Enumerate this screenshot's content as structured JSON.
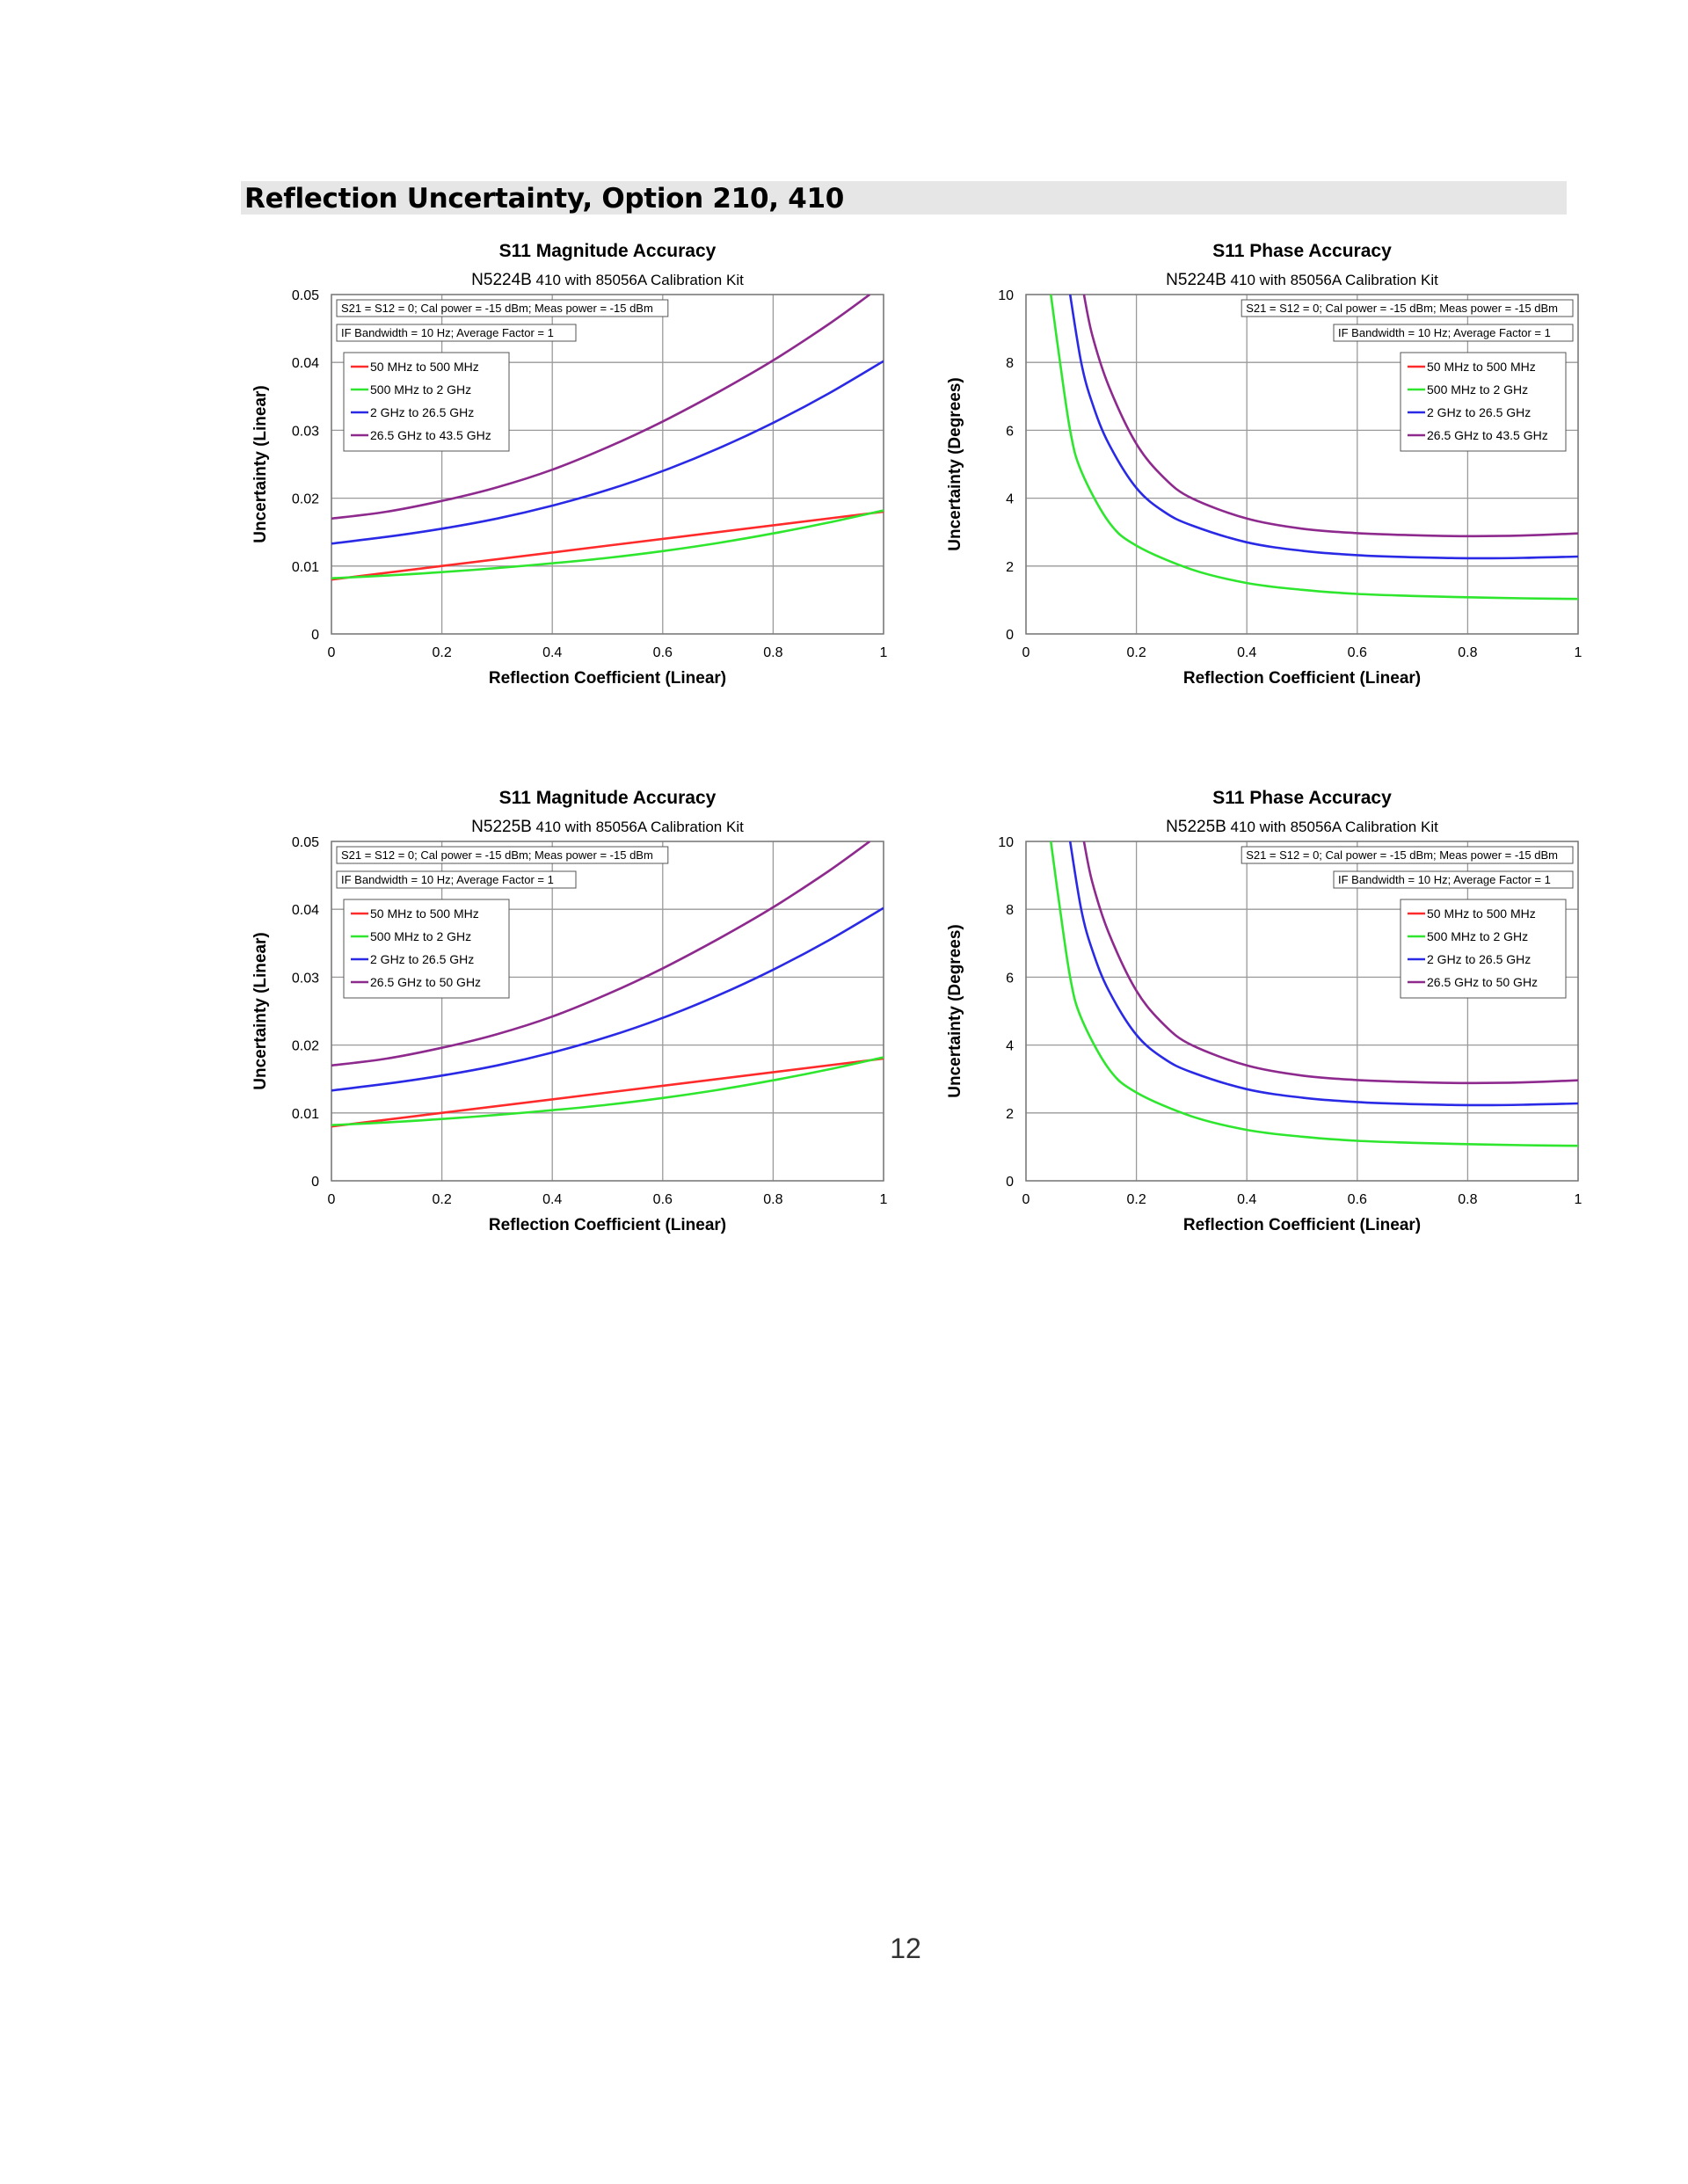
{
  "section": {
    "title": "Reflection Uncertainty, Option 210, 410"
  },
  "page_number": "12",
  "chart_data": [
    {
      "type": "line",
      "title": "S11 Magnitude Accuracy",
      "subtitle_model": "N5224B",
      "subtitle_rest": "410 with 85056A Calibration Kit",
      "xlabel": "Reflection Coefficient (Linear)",
      "ylabel": "Uncertainty (Linear)",
      "xlim": [
        0,
        1
      ],
      "ylim": [
        0,
        0.05
      ],
      "x_ticks": [
        "0",
        "0.2",
        "0.4",
        "0.6",
        "0.8",
        "1"
      ],
      "y_ticks": [
        "0",
        "0.01",
        "0.02",
        "0.03",
        "0.04",
        "0.05"
      ],
      "grid": true,
      "conditions": [
        "S21 = S12 = 0; Cal power = -15 dBm; Meas power = -15 dBm",
        "IF Bandwidth = 10 Hz; Average Factor = 1"
      ],
      "legend_position": "top-left",
      "series": [
        {
          "name": "50 MHz to 500 MHz",
          "color": "#ff2a2a",
          "x": [
            0,
            1
          ],
          "y": [
            0.008,
            0.018
          ]
        },
        {
          "name": "500 MHz to 2 GHz",
          "color": "#2ee62e",
          "x": [
            0,
            0.1,
            0.2,
            0.3,
            0.4,
            0.5,
            0.6,
            0.7,
            0.8,
            0.9,
            1.0
          ],
          "y": [
            0.0082,
            0.0086,
            0.0091,
            0.0097,
            0.0104,
            0.0112,
            0.0122,
            0.0134,
            0.0148,
            0.0164,
            0.0182
          ]
        },
        {
          "name": "2 GHz to 26.5 GHz",
          "color": "#2a2ae6",
          "x": [
            0,
            0.1,
            0.2,
            0.3,
            0.4,
            0.5,
            0.6,
            0.7,
            0.8,
            0.9,
            1.0
          ],
          "y": [
            0.0133,
            0.0143,
            0.0155,
            0.017,
            0.0189,
            0.0212,
            0.024,
            0.0273,
            0.0311,
            0.0354,
            0.0402
          ]
        },
        {
          "name": "26.5 GHz to 43.5 GHz",
          "color": "#8e2a8e",
          "x": [
            0,
            0.1,
            0.2,
            0.3,
            0.4,
            0.5,
            0.6,
            0.7,
            0.8,
            0.9,
            0.975
          ],
          "y": [
            0.017,
            0.018,
            0.0196,
            0.0216,
            0.0242,
            0.0275,
            0.0313,
            0.0356,
            0.0403,
            0.0456,
            0.05
          ]
        }
      ]
    },
    {
      "type": "line",
      "title": "S11 Phase Accuracy",
      "subtitle_model": "N5224B",
      "subtitle_rest": "410 with 85056A Calibration Kit",
      "xlabel": "Reflection Coefficient (Linear)",
      "ylabel": "Uncertainty (Degrees)",
      "xlim": [
        0,
        1
      ],
      "ylim": [
        0,
        10
      ],
      "x_ticks": [
        "0",
        "0.2",
        "0.4",
        "0.6",
        "0.8",
        "1"
      ],
      "y_ticks": [
        "0",
        "2",
        "4",
        "6",
        "8",
        "10"
      ],
      "grid": true,
      "conditions": [
        "S21 = S12 = 0; Cal power = -15 dBm; Meas power = -15 dBm",
        "IF Bandwidth = 10 Hz; Average Factor = 1"
      ],
      "legend_position": "top-right",
      "series": [
        {
          "name": "50 MHz to 500 MHz",
          "color": "#ff2a2a",
          "x": [],
          "y": []
        },
        {
          "name": "500 MHz to 2 GHz",
          "color": "#2ee62e",
          "x": [
            0.045,
            0.06,
            0.08,
            0.1,
            0.15,
            0.2,
            0.3,
            0.4,
            0.5,
            0.6,
            0.7,
            0.8,
            0.9,
            1.0
          ],
          "y": [
            10,
            8.2,
            6.0,
            4.8,
            3.3,
            2.6,
            1.9,
            1.5,
            1.3,
            1.18,
            1.12,
            1.08,
            1.05,
            1.03
          ]
        },
        {
          "name": "2 GHz to 26.5 GHz",
          "color": "#2a2ae6",
          "x": [
            0.08,
            0.1,
            0.12,
            0.15,
            0.2,
            0.25,
            0.3,
            0.4,
            0.5,
            0.6,
            0.7,
            0.8,
            0.9,
            1.0
          ],
          "y": [
            10,
            8.0,
            6.8,
            5.6,
            4.3,
            3.6,
            3.2,
            2.7,
            2.45,
            2.32,
            2.26,
            2.23,
            2.24,
            2.28
          ]
        },
        {
          "name": "26.5 GHz to 43.5 GHz",
          "color": "#8e2a8e",
          "x": [
            0.105,
            0.12,
            0.15,
            0.2,
            0.25,
            0.3,
            0.4,
            0.5,
            0.6,
            0.7,
            0.8,
            0.9,
            1.0
          ],
          "y": [
            10,
            8.8,
            7.3,
            5.6,
            4.6,
            4.0,
            3.4,
            3.1,
            2.97,
            2.91,
            2.88,
            2.9,
            2.96
          ]
        }
      ]
    },
    {
      "type": "line",
      "title": "S11 Magnitude Accuracy",
      "subtitle_model": "N5225B",
      "subtitle_rest": "410 with 85056A Calibration Kit",
      "xlabel": "Reflection Coefficient (Linear)",
      "ylabel": "Uncertainty (Linear)",
      "xlim": [
        0,
        1
      ],
      "ylim": [
        0,
        0.05
      ],
      "x_ticks": [
        "0",
        "0.2",
        "0.4",
        "0.6",
        "0.8",
        "1"
      ],
      "y_ticks": [
        "0",
        "0.01",
        "0.02",
        "0.03",
        "0.04",
        "0.05"
      ],
      "grid": true,
      "conditions": [
        "S21 = S12 = 0; Cal power = -15 dBm; Meas power = -15 dBm",
        "IF Bandwidth = 10 Hz; Average Factor = 1"
      ],
      "legend_position": "top-left",
      "series": [
        {
          "name": "50 MHz to 500 MHz",
          "color": "#ff2a2a",
          "x": [
            0,
            1
          ],
          "y": [
            0.008,
            0.018
          ]
        },
        {
          "name": "500 MHz to 2 GHz",
          "color": "#2ee62e",
          "x": [
            0,
            0.1,
            0.2,
            0.3,
            0.4,
            0.5,
            0.6,
            0.7,
            0.8,
            0.9,
            1.0
          ],
          "y": [
            0.0082,
            0.0086,
            0.0091,
            0.0097,
            0.0104,
            0.0112,
            0.0122,
            0.0134,
            0.0148,
            0.0164,
            0.0182
          ]
        },
        {
          "name": "2 GHz to 26.5 GHz",
          "color": "#2a2ae6",
          "x": [
            0,
            0.1,
            0.2,
            0.3,
            0.4,
            0.5,
            0.6,
            0.7,
            0.8,
            0.9,
            1.0
          ],
          "y": [
            0.0133,
            0.0143,
            0.0155,
            0.017,
            0.0189,
            0.0212,
            0.024,
            0.0273,
            0.0311,
            0.0354,
            0.0402
          ]
        },
        {
          "name": "26.5 GHz to 50 GHz",
          "color": "#8e2a8e",
          "x": [
            0,
            0.1,
            0.2,
            0.3,
            0.4,
            0.5,
            0.6,
            0.7,
            0.8,
            0.9,
            0.975
          ],
          "y": [
            0.017,
            0.018,
            0.0196,
            0.0216,
            0.0242,
            0.0275,
            0.0313,
            0.0356,
            0.0403,
            0.0456,
            0.05
          ]
        }
      ]
    },
    {
      "type": "line",
      "title": "S11 Phase Accuracy",
      "subtitle_model": "N5225B",
      "subtitle_rest": "410 with 85056A Calibration Kit",
      "xlabel": "Reflection Coefficient (Linear)",
      "ylabel": "Uncertainty (Degrees)",
      "xlim": [
        0,
        1
      ],
      "ylim": [
        0,
        10
      ],
      "x_ticks": [
        "0",
        "0.2",
        "0.4",
        "0.6",
        "0.8",
        "1"
      ],
      "y_ticks": [
        "0",
        "2",
        "4",
        "6",
        "8",
        "10"
      ],
      "grid": true,
      "conditions": [
        "S21 = S12 = 0; Cal power = -15 dBm; Meas power = -15 dBm",
        "IF Bandwidth = 10 Hz; Average Factor = 1"
      ],
      "legend_position": "top-right",
      "series": [
        {
          "name": "50 MHz to 500 MHz",
          "color": "#ff2a2a",
          "x": [],
          "y": []
        },
        {
          "name": "500 MHz to 2 GHz",
          "color": "#2ee62e",
          "x": [
            0.045,
            0.06,
            0.08,
            0.1,
            0.15,
            0.2,
            0.3,
            0.4,
            0.5,
            0.6,
            0.7,
            0.8,
            0.9,
            1.0
          ],
          "y": [
            10,
            8.2,
            6.0,
            4.8,
            3.3,
            2.6,
            1.9,
            1.5,
            1.3,
            1.18,
            1.12,
            1.08,
            1.05,
            1.03
          ]
        },
        {
          "name": "2 GHz to 26.5 GHz",
          "color": "#2a2ae6",
          "x": [
            0.08,
            0.1,
            0.12,
            0.15,
            0.2,
            0.25,
            0.3,
            0.4,
            0.5,
            0.6,
            0.7,
            0.8,
            0.9,
            1.0
          ],
          "y": [
            10,
            8.0,
            6.8,
            5.6,
            4.3,
            3.6,
            3.2,
            2.7,
            2.45,
            2.32,
            2.26,
            2.23,
            2.24,
            2.28
          ]
        },
        {
          "name": "26.5 GHz to 50 GHz",
          "color": "#8e2a8e",
          "x": [
            0.105,
            0.12,
            0.15,
            0.2,
            0.25,
            0.3,
            0.4,
            0.5,
            0.6,
            0.7,
            0.8,
            0.9,
            1.0
          ],
          "y": [
            10,
            8.8,
            7.3,
            5.6,
            4.6,
            4.0,
            3.4,
            3.1,
            2.97,
            2.91,
            2.88,
            2.9,
            2.96
          ]
        }
      ]
    }
  ]
}
